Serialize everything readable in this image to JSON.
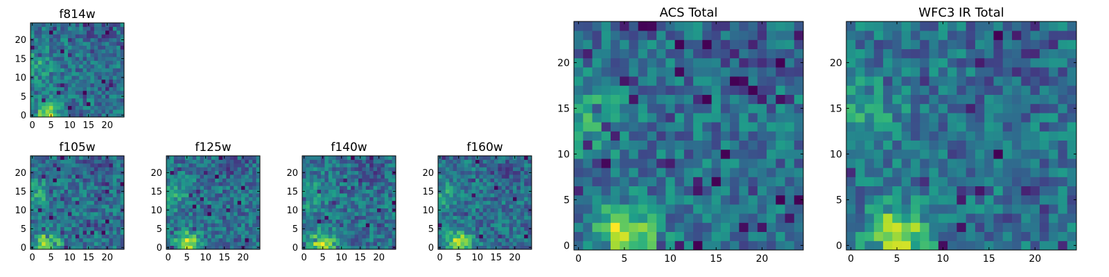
{
  "colormap": {
    "name": "viridis",
    "stops": [
      "#440154",
      "#482878",
      "#3e4989",
      "#31688e",
      "#26828e",
      "#1f9e89",
      "#35b779",
      "#6ece58",
      "#b5de2b",
      "#fde725"
    ]
  },
  "chart_data": [
    {
      "type": "heatmap",
      "title": "f814w",
      "xlabel": "",
      "ylabel": "",
      "xlim": [
        -0.5,
        24.5
      ],
      "ylim": [
        -0.5,
        24.5
      ],
      "xticks": [
        "0",
        "5",
        "10",
        "15",
        "20"
      ],
      "yticks": [
        "0",
        "5",
        "10",
        "15",
        "20"
      ],
      "grid": false,
      "bright_spot": [
        4,
        0
      ],
      "seed": 11
    },
    {
      "type": "heatmap",
      "title": "f105w",
      "xlabel": "",
      "ylabel": "",
      "xlim": [
        -0.5,
        24.5
      ],
      "ylim": [
        -0.5,
        24.5
      ],
      "xticks": [
        "0",
        "5",
        "10",
        "15",
        "20"
      ],
      "yticks": [
        "0",
        "5",
        "10",
        "15",
        "20"
      ],
      "grid": false,
      "bright_spot": [
        4,
        1
      ],
      "seed": 23
    },
    {
      "type": "heatmap",
      "title": "f125w",
      "xlabel": "",
      "ylabel": "",
      "xlim": [
        -0.5,
        24.5
      ],
      "ylim": [
        -0.5,
        24.5
      ],
      "xticks": [
        "0",
        "5",
        "10",
        "15",
        "20"
      ],
      "yticks": [
        "0",
        "5",
        "10",
        "15",
        "20"
      ],
      "grid": false,
      "bright_spot": [
        5,
        1
      ],
      "seed": 37
    },
    {
      "type": "heatmap",
      "title": "f140w",
      "xlabel": "",
      "ylabel": "",
      "xlim": [
        -0.5,
        24.5
      ],
      "ylim": [
        -0.5,
        24.5
      ],
      "xticks": [
        "0",
        "5",
        "10",
        "15",
        "20"
      ],
      "yticks": [
        "0",
        "5",
        "10",
        "15",
        "20"
      ],
      "grid": false,
      "bright_spot": [
        5,
        1
      ],
      "seed": 41
    },
    {
      "type": "heatmap",
      "title": "f160w",
      "xlabel": "",
      "ylabel": "",
      "xlim": [
        -0.5,
        24.5
      ],
      "ylim": [
        -0.5,
        24.5
      ],
      "xticks": [
        "0",
        "5",
        "10",
        "15",
        "20"
      ],
      "yticks": [
        "0",
        "5",
        "10",
        "15",
        "20"
      ],
      "grid": false,
      "bright_spot": [
        5,
        1
      ],
      "seed": 53
    },
    {
      "type": "heatmap",
      "title": "ACS Total",
      "xlabel": "",
      "ylabel": "",
      "xlim": [
        -0.5,
        24.5
      ],
      "ylim": [
        -0.5,
        24.5
      ],
      "xticks": [
        "0",
        "5",
        "10",
        "15",
        "20"
      ],
      "yticks": [
        "0",
        "5",
        "10",
        "15",
        "20"
      ],
      "grid": false,
      "bright_spot": [
        5,
        1
      ],
      "seed": 67
    },
    {
      "type": "heatmap",
      "title": "WFC3 IR Total",
      "xlabel": "",
      "ylabel": "",
      "xlim": [
        -0.5,
        24.5
      ],
      "ylim": [
        -0.5,
        24.5
      ],
      "xticks": [
        "0",
        "5",
        "10",
        "15",
        "20"
      ],
      "yticks": [
        "0",
        "5",
        "10",
        "15",
        "20"
      ],
      "grid": false,
      "bright_spot": [
        5,
        1
      ],
      "seed": 79
    }
  ]
}
